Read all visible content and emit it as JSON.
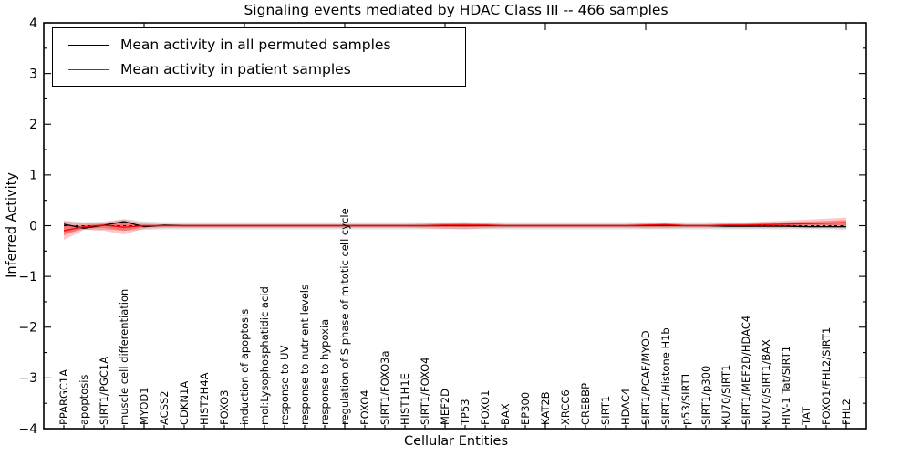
{
  "chart_data": {
    "type": "line",
    "title": "Signaling events mediated by HDAC Class III -- 466 samples",
    "xlabel": "Cellular Entities",
    "ylabel": "Inferred Activity",
    "xlim": [
      0,
      41
    ],
    "ylim": [
      -4,
      4
    ],
    "y_ticks": [
      -4,
      -3,
      -2,
      -1,
      0,
      1,
      2,
      3,
      4
    ],
    "y_minor_step": 0.5,
    "x_major_ticks": [
      5,
      10,
      15,
      20,
      25,
      30,
      35,
      40
    ],
    "grid": false,
    "legend_position": "upper left",
    "legend": [
      {
        "label": "Mean activity in all permuted samples",
        "color": "#000000"
      },
      {
        "label": "Mean activity in patient samples",
        "color": "#ff0000"
      }
    ],
    "categories": [
      "PPARGC1A",
      "apoptosis",
      "SIRT1/PGC1A",
      "muscle cell differentiation",
      "MYOD1",
      "ACSS2",
      "CDKN1A",
      "HIST2H4A",
      "FOXO3",
      "induction of apoptosis",
      "mol:Lysophosphatidic acid",
      "response to UV",
      "response to nutrient levels",
      "response to hypoxia",
      "regulation of S phase of mitotic cell cycle",
      "FOXO4",
      "SIRT1/FOXO3a",
      "HIST1H1E",
      "SIRT1/FOXO4",
      "MEF2D",
      "TP53",
      "FOXO1",
      "BAX",
      "EP300",
      "KAT2B",
      "XRCC6",
      "CREBBP",
      "SIRT1",
      "HDAC4",
      "SIRT1/PCAF/MYOD",
      "SIRT1/Histone H1b",
      "p53/SIRT1",
      "SIRT1/p300",
      "KU70/SIRT1",
      "SIRT1/MEF2D/HDAC4",
      "KU70/SIRT1/BAX",
      "HIV-1 Tat/SIRT1",
      "TAT",
      "FOXO1/FHL2/SIRT1",
      "FHL2"
    ],
    "series": [
      {
        "name": "Mean activity in all permuted samples",
        "color": "#000000",
        "values": [
          0.03,
          -0.05,
          0.01,
          0.08,
          -0.02,
          0.01,
          0,
          0,
          0,
          0,
          0,
          0,
          0,
          0,
          0,
          0,
          0,
          0,
          0,
          0,
          0,
          0,
          0,
          0,
          0,
          0,
          0,
          0,
          0,
          0,
          0,
          0,
          0,
          -0.01,
          -0.01,
          -0.01,
          -0.01,
          -0.02,
          -0.02,
          -0.02
        ]
      },
      {
        "name": "Mean activity in patient samples",
        "color": "#ff0000",
        "values": [
          -0.1,
          -0.02,
          0.01,
          -0.03,
          0,
          0,
          0,
          0,
          0,
          0,
          0,
          0,
          0,
          0,
          0,
          0,
          0,
          0,
          0,
          0.01,
          0.01,
          0.01,
          0,
          0,
          0,
          0,
          0,
          0,
          0,
          0.01,
          0.02,
          0,
          0,
          0.01,
          0.01,
          0.02,
          0.03,
          0.04,
          0.05,
          0.06
        ]
      }
    ],
    "bands": [
      {
        "name": "permuted-std-band",
        "color": "#000000",
        "opacity": 0.13,
        "upper": [
          0.1,
          0.07,
          0.08,
          0.13,
          0.08,
          0.07,
          0.07,
          0.07,
          0.07,
          0.07,
          0.07,
          0.07,
          0.07,
          0.07,
          0.07,
          0.07,
          0.07,
          0.07,
          0.07,
          0.07,
          0.07,
          0.07,
          0.07,
          0.07,
          0.07,
          0.07,
          0.07,
          0.07,
          0.07,
          0.07,
          0.07,
          0.07,
          0.07,
          0.07,
          0.07,
          0.07,
          0.07,
          0.07,
          0.07,
          0.07
        ],
        "lower": [
          -0.15,
          -0.08,
          -0.08,
          -0.1,
          -0.08,
          -0.07,
          -0.07,
          -0.07,
          -0.07,
          -0.07,
          -0.07,
          -0.07,
          -0.07,
          -0.07,
          -0.07,
          -0.07,
          -0.07,
          -0.07,
          -0.07,
          -0.07,
          -0.07,
          -0.07,
          -0.07,
          -0.07,
          -0.07,
          -0.07,
          -0.07,
          -0.07,
          -0.07,
          -0.07,
          -0.07,
          -0.07,
          -0.07,
          -0.07,
          -0.07,
          -0.07,
          -0.07,
          -0.07,
          -0.07,
          -0.08
        ]
      },
      {
        "name": "patient-std-band-outer",
        "color": "#ff0000",
        "opacity": 0.22,
        "upper": [
          0.09,
          0.04,
          0.06,
          0.12,
          0.04,
          0.03,
          0.03,
          0.03,
          0.03,
          0.03,
          0.03,
          0.03,
          0.03,
          0.03,
          0.03,
          0.03,
          0.03,
          0.03,
          0.04,
          0.06,
          0.07,
          0.05,
          0.03,
          0.03,
          0.03,
          0.03,
          0.03,
          0.03,
          0.03,
          0.05,
          0.06,
          0.03,
          0.03,
          0.05,
          0.06,
          0.08,
          0.1,
          0.12,
          0.14,
          0.16
        ],
        "lower": [
          -0.28,
          -0.08,
          -0.1,
          -0.17,
          -0.06,
          -0.04,
          -0.04,
          -0.04,
          -0.04,
          -0.04,
          -0.04,
          -0.04,
          -0.04,
          -0.04,
          -0.04,
          -0.04,
          -0.04,
          -0.04,
          -0.05,
          -0.06,
          -0.07,
          -0.05,
          -0.04,
          -0.04,
          -0.04,
          -0.04,
          -0.04,
          -0.04,
          -0.04,
          -0.05,
          -0.05,
          -0.04,
          -0.04,
          -0.04,
          -0.04,
          -0.04,
          -0.04,
          -0.04,
          -0.04,
          -0.05
        ]
      },
      {
        "name": "patient-std-band-inner",
        "color": "#ff0000",
        "opacity": 0.3,
        "upper": [
          -0.005,
          0.01,
          0.035,
          0.045,
          0.02,
          0.015,
          0.015,
          0.015,
          0.015,
          0.015,
          0.015,
          0.015,
          0.015,
          0.015,
          0.015,
          0.015,
          0.015,
          0.015,
          0.02,
          0.035,
          0.04,
          0.03,
          0.015,
          0.015,
          0.015,
          0.015,
          0.015,
          0.015,
          0.015,
          0.03,
          0.04,
          0.015,
          0.015,
          0.03,
          0.035,
          0.05,
          0.065,
          0.08,
          0.095,
          0.11
        ],
        "lower": [
          -0.19,
          -0.05,
          -0.045,
          -0.1,
          -0.03,
          -0.02,
          -0.02,
          -0.02,
          -0.02,
          -0.02,
          -0.02,
          -0.02,
          -0.02,
          -0.02,
          -0.02,
          -0.02,
          -0.02,
          -0.02,
          -0.025,
          -0.025,
          -0.03,
          -0.02,
          -0.02,
          -0.02,
          -0.02,
          -0.02,
          -0.02,
          -0.02,
          -0.02,
          -0.02,
          -0.015,
          -0.02,
          -0.02,
          -0.015,
          -0.015,
          -0.01,
          -0.005,
          0.0,
          0.005,
          0.005
        ]
      }
    ],
    "zero_line": {
      "style": "dashed",
      "color": "#000000",
      "value": 0
    }
  }
}
